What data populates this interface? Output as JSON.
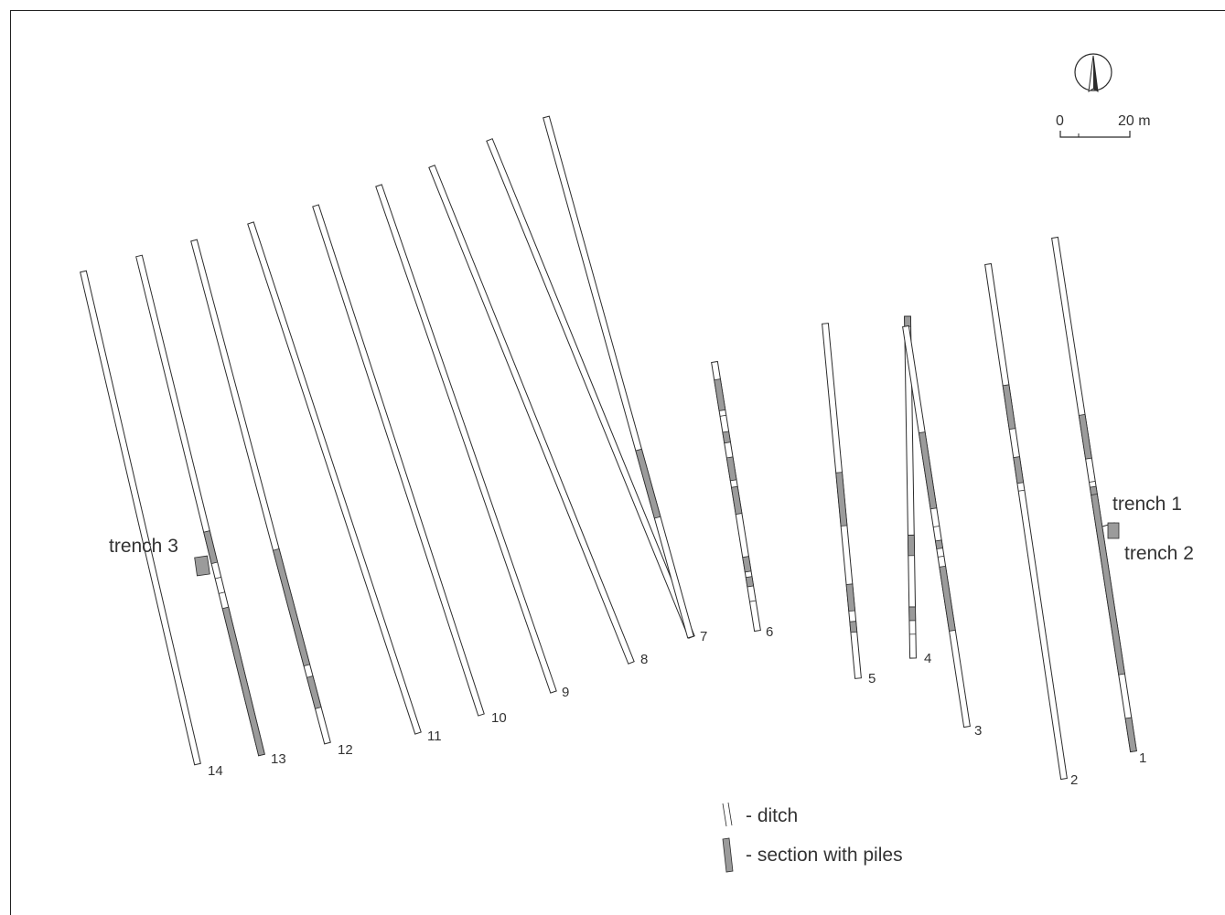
{
  "ditches": [
    {
      "label": "14",
      "top": [
        91,
        297
      ],
      "bottom": [
        216,
        836
      ],
      "piles": []
    },
    {
      "label": "13",
      "top": [
        152,
        280
      ],
      "bottom": [
        286,
        826
      ],
      "piles": [
        [
          0.552,
          0.615
        ],
        [
          0.705,
          1.0
        ]
      ],
      "breaks": [
        0.645,
        0.675
      ]
    },
    {
      "label": "12",
      "top": [
        212,
        263
      ],
      "bottom": [
        358,
        813
      ],
      "piles": [
        [
          0.615,
          0.845
        ],
        [
          0.868,
          0.93
        ]
      ]
    },
    {
      "label": "11",
      "top": [
        274,
        244
      ],
      "bottom": [
        457,
        802
      ],
      "piles": []
    },
    {
      "label": "10",
      "top": [
        345,
        225
      ],
      "bottom": [
        526,
        782
      ],
      "piles": []
    },
    {
      "label": "9",
      "top": [
        414,
        203
      ],
      "bottom": [
        605,
        757
      ],
      "piles": []
    },
    {
      "label": "8",
      "top": [
        472,
        182
      ],
      "bottom": [
        690,
        725
      ],
      "piles": []
    },
    {
      "label": "7",
      "top": [
        535,
        153
      ],
      "bottom": [
        756,
        697
      ],
      "piles": []
    },
    {
      "label": "6",
      "top": [
        597,
        128
      ],
      "bottom": [
        755,
        697
      ],
      "piles": [
        [
          0.64,
          0.77
        ]
      ]
    },
    {
      "label": "6",
      "top": [
        781,
        396
      ],
      "bottom": [
        828,
        690
      ],
      "piles": [
        [
          0.065,
          0.18
        ],
        [
          0.26,
          0.3
        ],
        [
          0.355,
          0.44
        ],
        [
          0.465,
          0.565
        ],
        [
          0.725,
          0.78
        ],
        [
          0.8,
          0.835
        ]
      ],
      "breaks": [
        0.2,
        0.89
      ]
    },
    {
      "label": "5",
      "top": [
        902,
        354
      ],
      "bottom": [
        938,
        742
      ],
      "piles": [
        [
          0.42,
          0.57
        ],
        [
          0.735,
          0.81
        ],
        [
          0.84,
          0.87
        ]
      ]
    },
    {
      "label": "4",
      "top": [
        992,
        346
      ],
      "bottom": [
        998,
        720
      ],
      "piles": [
        [
          0.0,
          0.03
        ],
        [
          0.64,
          0.7
        ],
        [
          0.85,
          0.89
        ]
      ],
      "breaks": [
        0.93
      ]
    },
    {
      "label": "3",
      "top": [
        990,
        357
      ],
      "bottom": [
        1057,
        795
      ],
      "piles": [
        [
          0.265,
          0.455
        ],
        [
          0.535,
          0.555
        ],
        [
          0.6,
          0.76
        ]
      ],
      "breaks": [
        0.5,
        0.575
      ]
    },
    {
      "label": "2",
      "top": [
        1080,
        289
      ],
      "bottom": [
        1163,
        852
      ],
      "piles": [
        [
          0.235,
          0.32
        ],
        [
          0.375,
          0.425
        ]
      ],
      "breaks": [
        0.44
      ]
    },
    {
      "label": "1",
      "top": [
        1153,
        260
      ],
      "bottom": [
        1239,
        822
      ],
      "piles": [
        [
          0.345,
          0.43
        ],
        [
          0.485,
          0.85
        ],
        [
          0.935,
          1.0
        ]
      ],
      "breaks": [
        0.475,
        0.5
      ]
    }
  ],
  "trenches": [
    {
      "label": "trench 1"
    },
    {
      "label": "trench 2"
    },
    {
      "label": "trench 3"
    }
  ],
  "legend": {
    "ditch_label": "- ditch",
    "piles_label": "- section with piles"
  },
  "scale": {
    "start_label": "0",
    "end_label": "20 m"
  },
  "colors": {
    "pile_fill": "#9b9b9b",
    "line": "#2b2b2b"
  },
  "north_arrow": "north-arrow-icon"
}
